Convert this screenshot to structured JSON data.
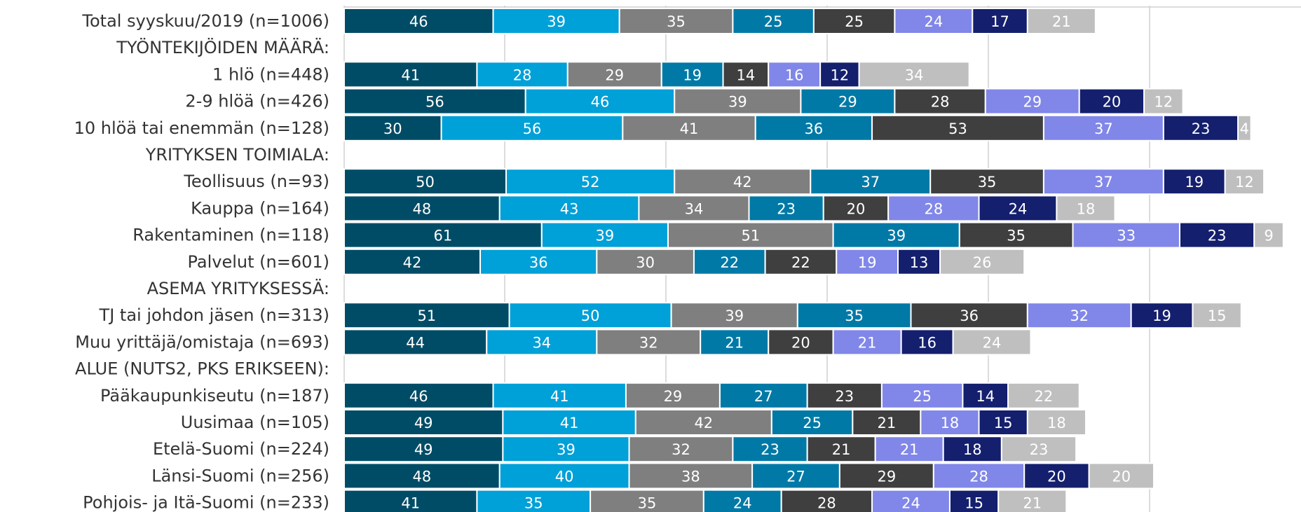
{
  "chart_data": {
    "type": "bar",
    "orientation": "horizontal",
    "stacked": true,
    "title": "",
    "xlabel": "",
    "ylabel": "",
    "legend": "none",
    "grid": "vertical",
    "colors": [
      "#004c66",
      "#00a0d8",
      "#7f7f7f",
      "#0079a6",
      "#3f3f3f",
      "#8187e8",
      "#141f6e",
      "#bfbfbf"
    ],
    "label_colors": [
      "#ffffff",
      "#ffffff",
      "#ffffff",
      "#ffffff",
      "#ffffff",
      "#ffffff",
      "#ffffff",
      "#ffffff"
    ],
    "rows": [
      {
        "label": "Total syyskuu/2019 (n=1006)",
        "values": [
          46,
          39,
          35,
          25,
          25,
          24,
          17,
          21
        ]
      },
      {
        "label": "TYÖNTEKIJÖIDEN MÄÄRÄ:",
        "values": []
      },
      {
        "label": "1 hlö (n=448)",
        "values": [
          41,
          28,
          29,
          19,
          14,
          16,
          12,
          34
        ]
      },
      {
        "label": "2-9 hlöä (n=426)",
        "values": [
          56,
          46,
          39,
          29,
          28,
          29,
          20,
          12
        ]
      },
      {
        "label": "10 hlöä tai enemmän (n=128)",
        "values": [
          30,
          56,
          41,
          36,
          53,
          37,
          23,
          4
        ]
      },
      {
        "label": "YRITYKSEN TOIMIALA:",
        "values": []
      },
      {
        "label": "Teollisuus (n=93)",
        "values": [
          50,
          52,
          42,
          37,
          35,
          37,
          19,
          12
        ]
      },
      {
        "label": "Kauppa (n=164)",
        "values": [
          48,
          43,
          34,
          23,
          20,
          28,
          24,
          18
        ]
      },
      {
        "label": "Rakentaminen (n=118)",
        "values": [
          61,
          39,
          51,
          39,
          35,
          33,
          23,
          9
        ]
      },
      {
        "label": "Palvelut (n=601)",
        "values": [
          42,
          36,
          30,
          22,
          22,
          19,
          13,
          26
        ]
      },
      {
        "label": "ASEMA YRITYKSESSÄ:",
        "values": []
      },
      {
        "label": "TJ tai johdon jäsen (n=313)",
        "values": [
          51,
          50,
          39,
          35,
          36,
          32,
          19,
          15
        ]
      },
      {
        "label": "Muu yrittäjä/omistaja (n=693)",
        "values": [
          44,
          34,
          32,
          21,
          20,
          21,
          16,
          24
        ]
      },
      {
        "label": "ALUE (NUTS2, PKS ERIKSEEN):",
        "values": []
      },
      {
        "label": "Pääkaupunkiseutu (n=187)",
        "values": [
          46,
          41,
          29,
          27,
          23,
          25,
          14,
          22
        ]
      },
      {
        "label": "Uusimaa (n=105)",
        "values": [
          49,
          41,
          42,
          25,
          21,
          18,
          15,
          18
        ]
      },
      {
        "label": "Etelä-Suomi (n=224)",
        "values": [
          49,
          39,
          32,
          23,
          21,
          21,
          18,
          23
        ]
      },
      {
        "label": "Länsi-Suomi (n=256)",
        "values": [
          48,
          40,
          38,
          27,
          29,
          28,
          20,
          20
        ]
      },
      {
        "label": "Pohjois- ja Itä-Suomi (n=233)",
        "values": [
          41,
          35,
          35,
          24,
          28,
          24,
          15,
          21
        ]
      }
    ]
  }
}
